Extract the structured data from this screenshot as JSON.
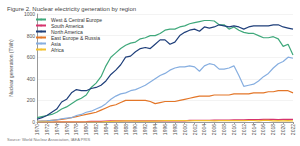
{
  "chart_data": {
    "type": "line",
    "title": "Figure 2. Nuclear electricity generation by region",
    "y_label": "Nuclear generation (TWh)",
    "source": "Source: World Nuclear Association, IAEA PRIS",
    "x": [
      1970,
      1971,
      1972,
      1973,
      1974,
      1975,
      1976,
      1977,
      1978,
      1979,
      1980,
      1981,
      1982,
      1983,
      1984,
      1985,
      1986,
      1987,
      1988,
      1989,
      1990,
      1991,
      1992,
      1993,
      1994,
      1995,
      1996,
      1997,
      1998,
      1999,
      2000,
      2001,
      2002,
      2003,
      2004,
      2005,
      2006,
      2007,
      2008,
      2009,
      2010,
      2011,
      2012,
      2013,
      2014,
      2015,
      2016,
      2017,
      2018,
      2019,
      2020,
      2021,
      2022
    ],
    "series": [
      {
        "name": "West & Central Europe",
        "color": "#3fa87b",
        "values": [
          40,
          50,
          60,
          70,
          90,
          120,
          140,
          170,
          200,
          220,
          250,
          320,
          360,
          420,
          520,
          600,
          640,
          680,
          710,
          730,
          740,
          770,
          780,
          800,
          800,
          820,
          850,
          860,
          860,
          880,
          890,
          910,
          920,
          930,
          940,
          940,
          935,
          900,
          900,
          860,
          880,
          850,
          830,
          820,
          820,
          800,
          780,
          780,
          790,
          770,
          700,
          720,
          620
        ]
      },
      {
        "name": "South America",
        "color": "#d6336c",
        "values": [
          0,
          0,
          0,
          0,
          1,
          2,
          2,
          2,
          2,
          2,
          3,
          5,
          5,
          5,
          8,
          10,
          10,
          10,
          10,
          10,
          10,
          10,
          10,
          10,
          10,
          10,
          10,
          10,
          10,
          10,
          11,
          15,
          16,
          16,
          16,
          16,
          18,
          18,
          18,
          18,
          20,
          20,
          21,
          22,
          22,
          23,
          24,
          24,
          24,
          23,
          24,
          24,
          25
        ]
      },
      {
        "name": "North America",
        "color": "#1f3f7a",
        "values": [
          25,
          40,
          60,
          90,
          120,
          185,
          210,
          270,
          300,
          290,
          290,
          310,
          320,
          340,
          380,
          440,
          480,
          530,
          600,
          610,
          650,
          680,
          690,
          680,
          720,
          760,
          760,
          720,
          740,
          800,
          830,
          850,
          860,
          840,
          880,
          870,
          880,
          900,
          890,
          880,
          890,
          880,
          860,
          880,
          890,
          890,
          890,
          890,
          900,
          900,
          880,
          870,
          860
        ]
      },
      {
        "name": "East Europe & Russia",
        "color": "#e37628",
        "values": [
          5,
          8,
          10,
          15,
          20,
          25,
          30,
          40,
          50,
          60,
          70,
          80,
          90,
          110,
          130,
          150,
          160,
          180,
          200,
          200,
          200,
          200,
          200,
          190,
          170,
          180,
          190,
          190,
          190,
          200,
          210,
          220,
          230,
          240,
          240,
          240,
          250,
          250,
          250,
          250,
          260,
          260,
          260,
          260,
          270,
          270,
          270,
          280,
          280,
          290,
          290,
          290,
          270
        ]
      },
      {
        "name": "Asia",
        "color": "#86aee0",
        "values": [
          5,
          8,
          10,
          15,
          20,
          30,
          35,
          40,
          60,
          70,
          90,
          100,
          120,
          140,
          170,
          210,
          240,
          260,
          270,
          290,
          300,
          320,
          340,
          370,
          400,
          430,
          450,
          480,
          500,
          510,
          510,
          520,
          510,
          470,
          520,
          540,
          530,
          490,
          490,
          500,
          520,
          430,
          330,
          340,
          350,
          380,
          420,
          450,
          500,
          540,
          560,
          600,
          590
        ]
      },
      {
        "name": "Africa",
        "color": "#f2c12e",
        "values": [
          0,
          0,
          0,
          0,
          0,
          0,
          0,
          0,
          0,
          0,
          0,
          0,
          0,
          0,
          3,
          5,
          8,
          9,
          11,
          11,
          8,
          9,
          9,
          9,
          9,
          11,
          12,
          12,
          13,
          13,
          13,
          11,
          12,
          13,
          14,
          12,
          10,
          12,
          12,
          12,
          12,
          13,
          12,
          14,
          14,
          11,
          15,
          15,
          10,
          13,
          11,
          12,
          10
        ]
      }
    ],
    "xlim": [
      1970,
      2022
    ],
    "xticks": [
      1970,
      1972,
      1974,
      1976,
      1978,
      1980,
      1982,
      1984,
      1986,
      1988,
      1990,
      1992,
      1994,
      1996,
      1998,
      2000,
      2002,
      2004,
      2006,
      2008,
      2010,
      2012,
      2014,
      2016,
      2018,
      2020,
      2022
    ],
    "ylim": [
      0,
      1000
    ],
    "yticks": [
      0,
      200,
      400,
      600,
      800,
      1000
    ],
    "grid": true,
    "legend": "top-left"
  }
}
